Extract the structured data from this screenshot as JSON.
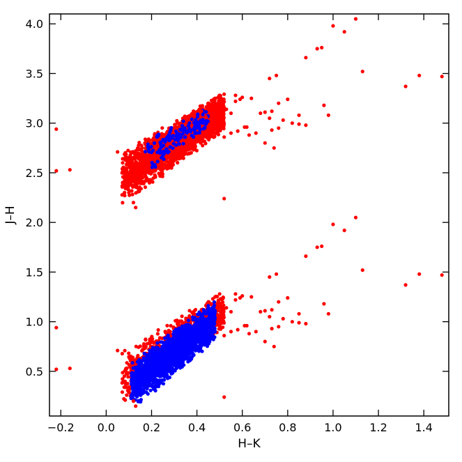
{
  "chart_data": {
    "type": "scatter",
    "title": "",
    "xlabel": "H–K",
    "ylabel": "J–H",
    "xlim": [
      -0.25,
      1.51
    ],
    "ylim": [
      0.05,
      4.1
    ],
    "x_ticks": [
      -0.2,
      0.0,
      0.2,
      0.4,
      0.6,
      0.8,
      1.0,
      1.2,
      1.4
    ],
    "x_tick_labels": [
      "−0.2",
      "0.0",
      "0.2",
      "0.4",
      "0.6",
      "0.8",
      "1.0",
      "1.2",
      "1.4"
    ],
    "y_ticks": [
      0.5,
      1.0,
      1.5,
      2.0,
      2.5,
      3.0,
      3.5,
      4.0
    ],
    "y_tick_labels": [
      "0.5",
      "1.0",
      "1.5",
      "2.0",
      "2.5",
      "3.0",
      "3.5",
      "4.0"
    ],
    "grid": false,
    "legend": "none",
    "series": [
      {
        "color": "#ff0000",
        "x": [
          1.1,
          1.0,
          0.95,
          0.93,
          0.88,
          1.05,
          1.13,
          0.75,
          0.72,
          1.48,
          1.38,
          1.32,
          0.98,
          0.85,
          0.8,
          0.76,
          0.73,
          0.7,
          0.68,
          0.72,
          0.78,
          0.82,
          0.85,
          0.88,
          0.96,
          0.73,
          0.76,
          0.66,
          0.7,
          0.74,
          0.62,
          0.55,
          0.52,
          0.58,
          0.61,
          0.63,
          0.6,
          0.57,
          0.64,
          0.52,
          -0.22,
          -0.22,
          -0.16,
          0.05,
          0.08,
          0.1,
          0.12,
          0.13,
          0.45,
          0.47,
          0.5,
          0.48,
          0.51,
          0.46,
          0.53,
          0.55,
          0.57,
          0.59,
          0.5,
          0.44,
          0.42
        ],
        "y": [
          4.05,
          3.98,
          3.76,
          3.75,
          3.66,
          3.92,
          3.52,
          3.48,
          3.45,
          3.47,
          3.48,
          3.37,
          3.08,
          2.99,
          3.24,
          3.2,
          3.12,
          3.11,
          3.1,
          3.05,
          3.03,
          3.0,
          3.08,
          2.98,
          3.18,
          2.93,
          2.95,
          2.9,
          2.8,
          2.75,
          2.96,
          2.9,
          2.86,
          2.92,
          2.96,
          2.88,
          3.26,
          3.22,
          3.25,
          2.24,
          2.94,
          2.52,
          2.53,
          2.71,
          2.45,
          2.3,
          2.2,
          2.15,
          3.2,
          3.23,
          3.28,
          3.25,
          3.22,
          3.18,
          3.14,
          3.1,
          3.28,
          3.24,
          3.02,
          3.06,
          3.12
        ]
      },
      {
        "color": "#ff0000",
        "x": [
          1.1,
          1.0,
          0.95,
          0.93,
          0.88,
          1.05,
          1.13,
          0.75,
          0.72,
          1.48,
          1.38,
          1.32,
          0.98,
          0.85,
          0.8,
          0.76,
          0.73,
          0.7,
          0.68,
          0.72,
          0.78,
          0.82,
          0.85,
          0.88,
          0.96,
          0.73,
          0.76,
          0.66,
          0.7,
          0.74,
          0.62,
          0.55,
          0.52,
          0.58,
          0.61,
          0.63,
          0.6,
          0.57,
          0.64,
          0.52,
          -0.22,
          -0.22,
          -0.16,
          0.05,
          0.08,
          0.1,
          0.12,
          0.13,
          0.45,
          0.47,
          0.5,
          0.48,
          0.51,
          0.46,
          0.53,
          0.55,
          0.57,
          0.59,
          0.5,
          0.44,
          0.42
        ],
        "y": [
          2.05,
          1.98,
          1.76,
          1.75,
          1.66,
          1.92,
          1.52,
          1.48,
          1.45,
          1.47,
          1.48,
          1.37,
          1.08,
          0.99,
          1.24,
          1.2,
          1.12,
          1.11,
          1.1,
          1.05,
          1.03,
          1.0,
          1.08,
          0.98,
          1.18,
          0.93,
          0.95,
          0.9,
          0.8,
          0.75,
          0.96,
          0.9,
          0.86,
          0.92,
          0.96,
          0.88,
          1.26,
          1.22,
          1.25,
          0.24,
          0.94,
          0.52,
          0.53,
          0.71,
          0.45,
          0.3,
          0.2,
          0.15,
          1.2,
          1.23,
          1.28,
          1.25,
          1.22,
          1.18,
          1.14,
          1.1,
          1.28,
          1.24,
          1.02,
          1.06,
          1.12
        ]
      },
      {
        "color": "#0000ff",
        "x": [
          0.22,
          0.25,
          0.28,
          0.3,
          0.33,
          0.35,
          0.38,
          0.4,
          0.42,
          0.44,
          0.36,
          0.31,
          0.27,
          0.24,
          0.2,
          0.18,
          0.45,
          0.43,
          0.39,
          0.34
        ],
        "y": [
          0.58,
          0.62,
          0.66,
          0.7,
          0.74,
          0.78,
          0.84,
          0.92,
          1.0,
          1.08,
          0.96,
          0.86,
          0.76,
          0.68,
          0.56,
          0.5,
          1.16,
          1.12,
          1.04,
          0.94
        ]
      }
    ],
    "clusters": [
      {
        "series": 0,
        "x_range": [
          0.07,
          0.52
        ],
        "y_at_x_min": [
          2.16,
          2.72
        ],
        "y_at_x_max": [
          2.92,
          3.32
        ],
        "count": 2200
      },
      {
        "series": 2,
        "x_range": [
          0.17,
          0.45
        ],
        "y_at_x_min": [
          2.44,
          2.86
        ],
        "y_at_x_max": [
          2.96,
          3.18
        ],
        "count": 160
      },
      {
        "series": 1,
        "x_range": [
          0.07,
          0.52
        ],
        "y_at_x_min": [
          0.16,
          0.72
        ],
        "y_at_x_max": [
          0.92,
          1.32
        ],
        "count": 900
      },
      {
        "series": 2,
        "x_range": [
          0.11,
          0.48
        ],
        "y_at_x_min": [
          0.1,
          0.62
        ],
        "y_at_x_max": [
          0.8,
          1.22
        ],
        "count": 1800
      }
    ]
  }
}
